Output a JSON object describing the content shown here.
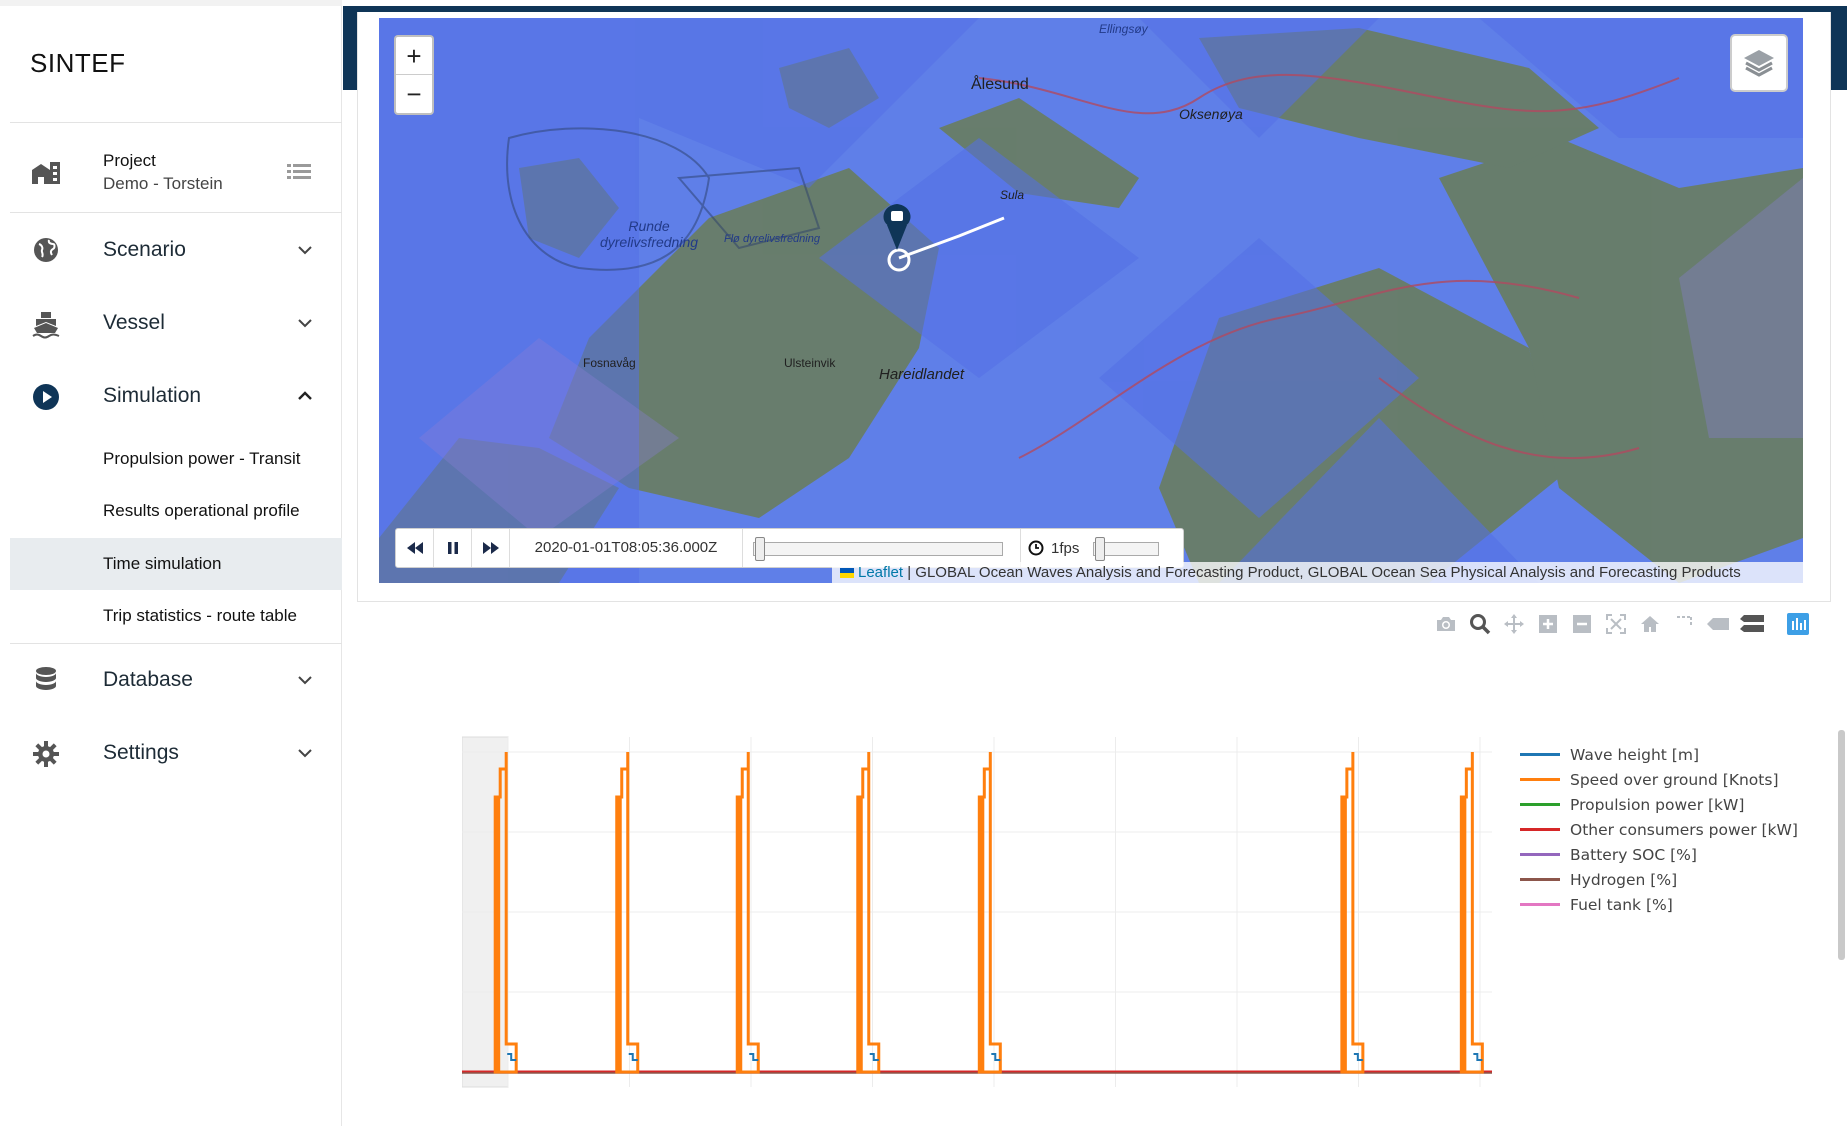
{
  "app": {
    "brand": "SINTEF"
  },
  "sidebar": {
    "project": {
      "label": "Project",
      "value": "Demo - Torstein"
    },
    "items": [
      {
        "label": "Scenario",
        "icon": "globe-icon",
        "expanded": false
      },
      {
        "label": "Vessel",
        "icon": "ship-icon",
        "expanded": false
      },
      {
        "label": "Simulation",
        "icon": "play-circle-icon",
        "expanded": true
      },
      {
        "label": "Database",
        "icon": "database-icon",
        "expanded": false
      },
      {
        "label": "Settings",
        "icon": "gear-icon",
        "expanded": false
      }
    ],
    "simulation_sub": [
      {
        "label": "Propulsion power - Transit",
        "active": false
      },
      {
        "label": "Results operational profile",
        "active": false
      },
      {
        "label": "Time simulation",
        "active": true
      },
      {
        "label": "Trip statistics - route table",
        "active": false
      }
    ]
  },
  "map": {
    "zoom_in": "+",
    "zoom_out": "−",
    "place_labels": [
      "Ellingsøy",
      "Ålesund",
      "Oksenøya",
      "Sula",
      "Runde dyrelivsfredning",
      "Flø dyrelivsfredning",
      "Fosnavåg",
      "Ulsteinvik",
      "Hareidlandet"
    ],
    "timestamp": "2020-01-01T08:05:36.000Z",
    "fps_label": "1fps",
    "attribution_link": "Leaflet",
    "attribution_text": " | GLOBAL Ocean Waves Analysis and Forecasting Product, GLOBAL Ocean Sea Physical Analysis and Forecasting Products"
  },
  "modebar": [
    "camera-icon",
    "zoom-icon",
    "pan-icon",
    "zoom-in-icon",
    "zoom-out-icon",
    "autoscale-icon",
    "home-icon",
    "spike-lines-icon",
    "hover-closest-icon",
    "hover-compare-icon",
    "plotly-logo-icon"
  ],
  "chart_data": {
    "type": "line",
    "title": "",
    "xlabel": "",
    "ylabel": "",
    "grid": true,
    "legend_position": "right",
    "series": [
      {
        "name": "Wave height [m]",
        "color": "#1f77b4"
      },
      {
        "name": "Speed over ground [Knots]",
        "color": "#ff7f0e"
      },
      {
        "name": "Propulsion power [kW]",
        "color": "#2ca02c"
      },
      {
        "name": "Other consumers power [kW]",
        "color": "#d62728"
      },
      {
        "name": "Battery SOC [%]",
        "color": "#9467bd"
      },
      {
        "name": "Hydrogen [%]",
        "color": "#8c564b"
      },
      {
        "name": "Fuel tank [%]",
        "color": "#e377c2"
      }
    ],
    "speed_peaks_x_fraction": [
      0.04,
      0.158,
      0.275,
      0.392,
      0.51,
      0.862,
      0.978
    ]
  },
  "colors": {
    "appbar": "#0f3557",
    "accent": "#1f77b4",
    "active_bg": "#e8ecef"
  }
}
